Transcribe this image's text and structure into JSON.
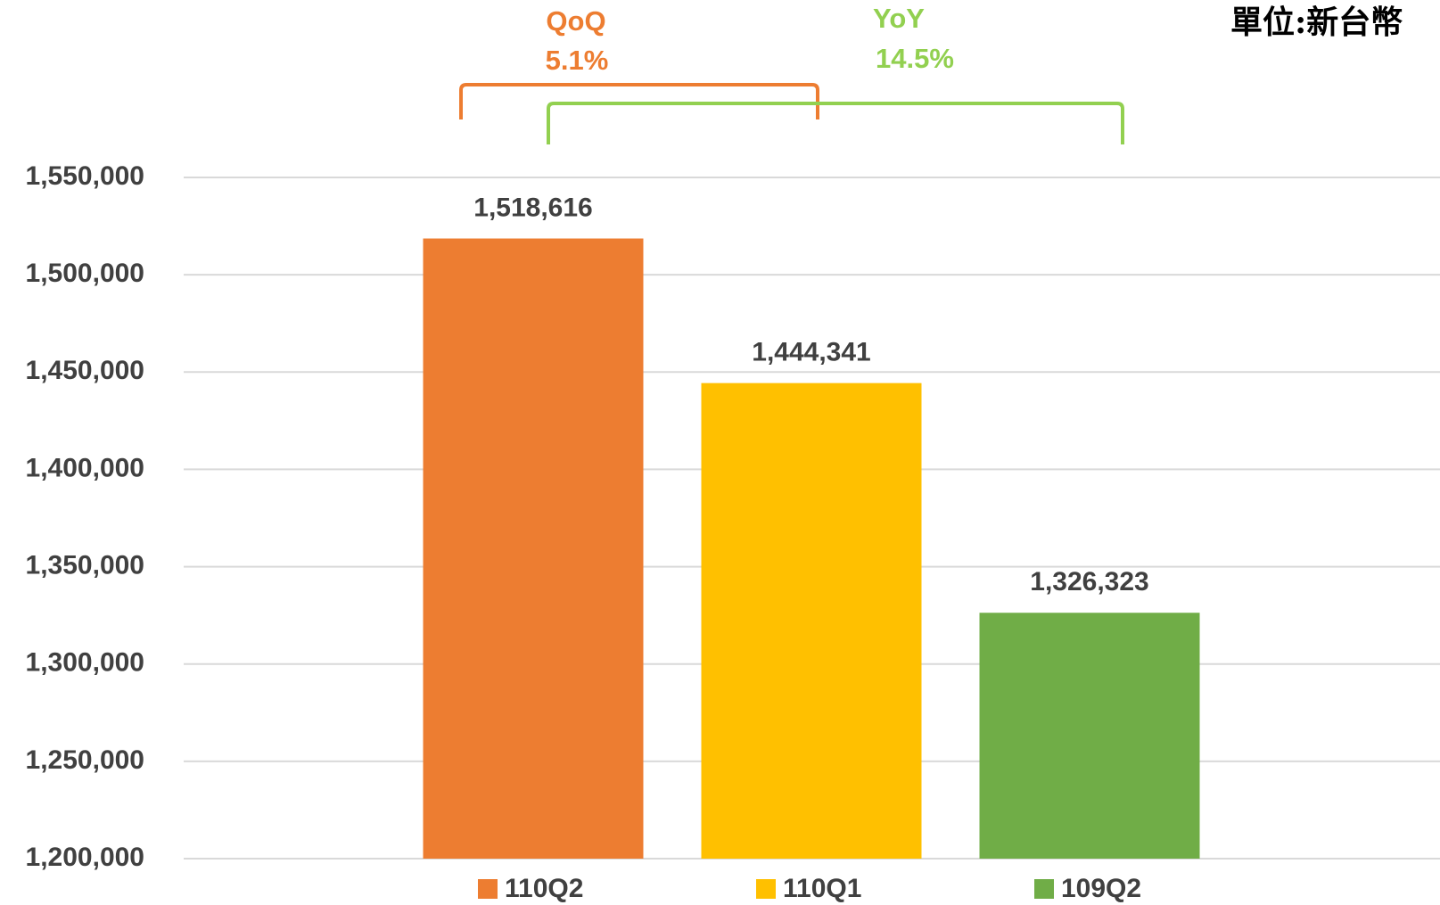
{
  "chart_data": {
    "type": "bar",
    "unit_note": "單位:新台幣",
    "categories": [
      "110Q2",
      "110Q1",
      "109Q2"
    ],
    "values": [
      1518616,
      1444341,
      1326323
    ],
    "value_labels": [
      "1,518,616",
      "1,444,341",
      "1,326,323"
    ],
    "colors": [
      "#ED7D31",
      "#FFC000",
      "#70AD47"
    ],
    "ylim": [
      1200000,
      1550000
    ],
    "yticks": [
      {
        "value": 1200000,
        "label": "1,200,000"
      },
      {
        "value": 1250000,
        "label": "1,250,000"
      },
      {
        "value": 1300000,
        "label": "1,300,000"
      },
      {
        "value": 1350000,
        "label": "1,350,000"
      },
      {
        "value": 1400000,
        "label": "1,400,000"
      },
      {
        "value": 1450000,
        "label": "1,450,000"
      },
      {
        "value": 1500000,
        "label": "1,500,000"
      },
      {
        "value": 1550000,
        "label": "1,550,000"
      }
    ],
    "grid": true,
    "annotations": [
      {
        "title": "QoQ",
        "text": "5.1%",
        "color": "#ED7D31"
      },
      {
        "title": "YoY",
        "text": "14.5%",
        "color": "#92D050"
      }
    ]
  }
}
